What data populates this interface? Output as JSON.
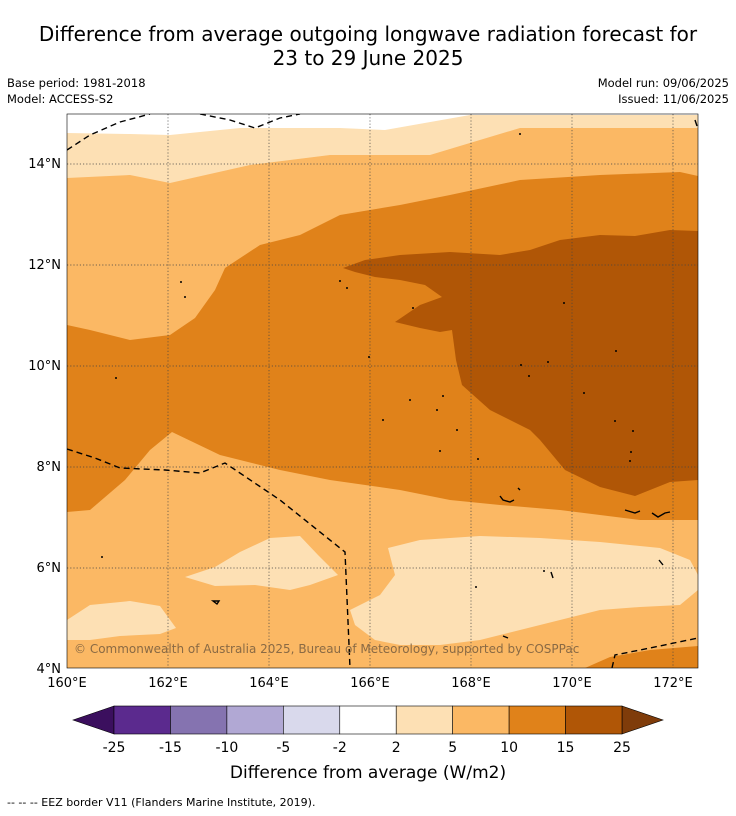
{
  "title_line1": "Difference from average outgoing longwave radiation forecast for",
  "title_line2": "23 to 29 June 2025",
  "base_period": "Base period: 1981-2018",
  "model": "Model: ACCESS-S2",
  "model_run": "Model run: 09/06/2025",
  "issued": "Issued: 11/06/2025",
  "map": {
    "x_ticks": [
      "160°E",
      "162°E",
      "164°E",
      "166°E",
      "168°E",
      "170°E",
      "172°E"
    ],
    "y_ticks": [
      "14°N",
      "12°N",
      "10°N",
      "8°N",
      "6°N",
      "4°N"
    ],
    "lon_range": [
      160,
      172.5
    ],
    "lat_range": [
      4,
      15
    ],
    "copyright": "© Commonwealth of Australia 2025, Bureau of Meteorology, supported by COSPPac"
  },
  "colorbar": {
    "labels": [
      "-25",
      "-15",
      "-10",
      "-5",
      "-2",
      "2",
      "5",
      "10",
      "15",
      "25"
    ],
    "colors": [
      "#5b2a8e",
      "#8573b0",
      "#b1a8d4",
      "#d9d9ec",
      "#ffffff",
      "#fde0b4",
      "#fbb864",
      "#e0821a",
      "#b05606"
    ],
    "under_color": "#3b0f5e",
    "over_color": "#7f3c0a",
    "title": "Difference from average (W/m2)"
  },
  "footnote": "-- -- -- EEZ border V11 (Flanders Marine Institute, 2019)."
}
